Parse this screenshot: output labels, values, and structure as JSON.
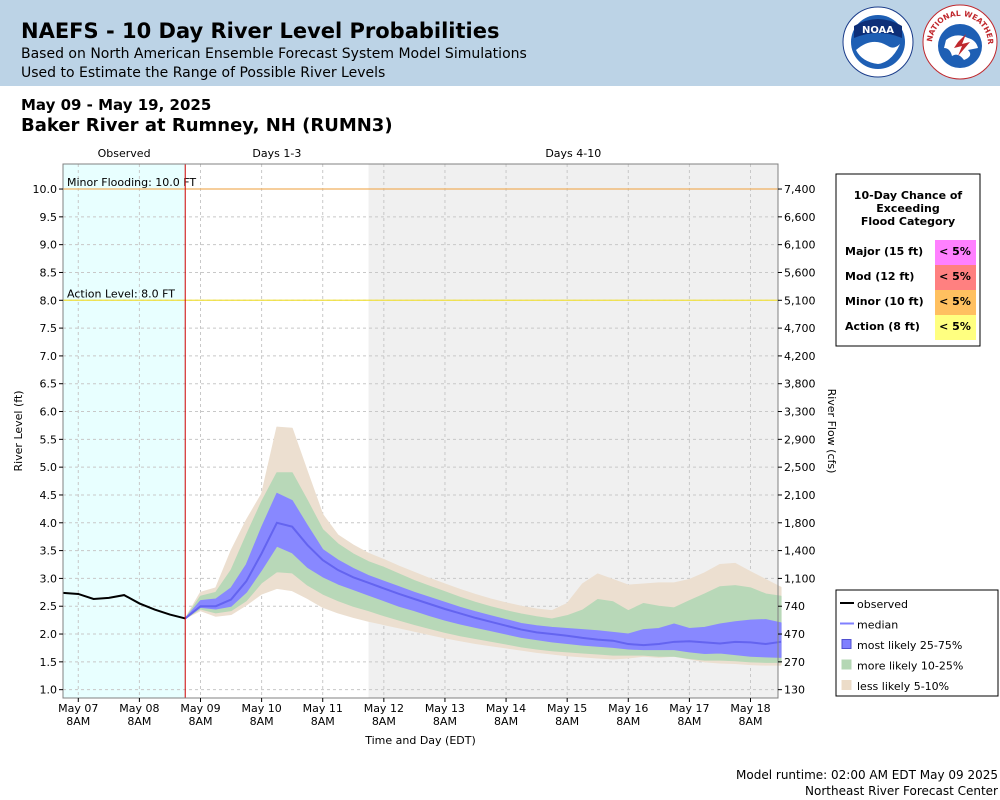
{
  "header": {
    "title": "NAEFS - 10 Day River Level Probabilities",
    "subtitle1": "Based on North American Ensemble Forecast System Model Simulations",
    "subtitle2": "Used to Estimate the Range of Possible River Levels",
    "date_range": "May 09 - May 19, 2025",
    "location": "Baker River at Rumney, NH (RUMN3)"
  },
  "logos": {
    "noara": "NOAA",
    "nws_arc": "NATIONAL WEATHER SERVICE"
  },
  "periods": [
    "Observed",
    "Days 1-3",
    "Days 4-10"
  ],
  "flood_table": {
    "title_lines": [
      "10-Day Chance of",
      "Exceeding",
      "Flood Category"
    ],
    "rows": [
      {
        "label": "Major (15 ft)",
        "value": "< 5%",
        "color": "#ff80ff"
      },
      {
        "label": "Mod (12 ft)",
        "value": "< 5%",
        "color": "#ff8080"
      },
      {
        "label": "Minor (10 ft)",
        "value": "< 5%",
        "color": "#ffc060"
      },
      {
        "label": "Action (8 ft)",
        "value": "< 5%",
        "color": "#ffff80"
      }
    ]
  },
  "footer": {
    "runtime": "Model runtime: 02:00 AM EDT May 09 2025",
    "center": "Northeast River Forecast Center"
  },
  "chart_data": {
    "type": "area",
    "xlabel": "Time and Day (EDT)",
    "ylabel": "River Level (ft)",
    "y2label": "River Flow (cfs)",
    "ylim": [
      0.85,
      10.45
    ],
    "xlim": [
      -0.25,
      11.45
    ],
    "x_ticks": [
      {
        "x": 0,
        "l1": "May 07",
        "l2": "8AM"
      },
      {
        "x": 1,
        "l1": "May 08",
        "l2": "8AM"
      },
      {
        "x": 2,
        "l1": "May 09",
        "l2": "8AM"
      },
      {
        "x": 3,
        "l1": "May 10",
        "l2": "8AM"
      },
      {
        "x": 4,
        "l1": "May 11",
        "l2": "8AM"
      },
      {
        "x": 5,
        "l1": "May 12",
        "l2": "8AM"
      },
      {
        "x": 6,
        "l1": "May 13",
        "l2": "8AM"
      },
      {
        "x": 7,
        "l1": "May 14",
        "l2": "8AM"
      },
      {
        "x": 8,
        "l1": "May 15",
        "l2": "8AM"
      },
      {
        "x": 9,
        "l1": "May 16",
        "l2": "8AM"
      },
      {
        "x": 10,
        "l1": "May 17",
        "l2": "8AM"
      },
      {
        "x": 11,
        "l1": "May 18",
        "l2": "8AM"
      }
    ],
    "y_ticks": [
      1.0,
      1.5,
      2.0,
      2.5,
      3.0,
      3.5,
      4.0,
      4.5,
      5.0,
      5.5,
      6.0,
      6.5,
      7.0,
      7.5,
      8.0,
      8.5,
      9.0,
      9.5,
      10.0
    ],
    "flow_ticks": [
      {
        "stage": 1.0,
        "label": "130"
      },
      {
        "stage": 1.5,
        "label": "270"
      },
      {
        "stage": 2.0,
        "label": "470"
      },
      {
        "stage": 2.5,
        "label": "740"
      },
      {
        "stage": 3.0,
        "label": "1,100"
      },
      {
        "stage": 3.5,
        "label": "1,400"
      },
      {
        "stage": 4.0,
        "label": "1,800"
      },
      {
        "stage": 4.5,
        "label": "2,100"
      },
      {
        "stage": 5.0,
        "label": "2,500"
      },
      {
        "stage": 5.5,
        "label": "2,900"
      },
      {
        "stage": 6.0,
        "label": "3,300"
      },
      {
        "stage": 6.5,
        "label": "3,800"
      },
      {
        "stage": 7.0,
        "label": "4,200"
      },
      {
        "stage": 7.5,
        "label": "4,700"
      },
      {
        "stage": 8.0,
        "label": "5,100"
      },
      {
        "stage": 8.5,
        "label": "5,600"
      },
      {
        "stage": 9.0,
        "label": "6,100"
      },
      {
        "stage": 9.5,
        "label": "6,600"
      },
      {
        "stage": 10.0,
        "label": "7,400"
      }
    ],
    "regions": {
      "observed_end": 1.75,
      "days4_start": 4.75,
      "observed_color": "#e8ffff",
      "days4_color": "#f0f0f0"
    },
    "thresholds": [
      {
        "label": "Minor Flooding: 10.0 FT",
        "value": 10.0,
        "color": "#f0b060"
      },
      {
        "label": "Action Level: 8.0 FT",
        "value": 8.0,
        "color": "#f0e040"
      }
    ],
    "observed": {
      "x": [
        -0.25,
        0.0,
        0.25,
        0.5,
        0.75,
        1.0,
        1.25,
        1.5,
        1.75
      ],
      "y": [
        2.74,
        2.72,
        2.63,
        2.65,
        2.7,
        2.55,
        2.44,
        2.35,
        2.28
      ]
    },
    "forecast_x": [
      1.75,
      2.0,
      2.25,
      2.5,
      2.75,
      3.0,
      3.25,
      3.5,
      3.75,
      4.0,
      4.25,
      4.5,
      4.75,
      5.0,
      5.25,
      5.5,
      5.75,
      6.0,
      6.25,
      6.5,
      6.75,
      7.0,
      7.25,
      7.5,
      7.75,
      8.0,
      8.25,
      8.5,
      8.75,
      9.0,
      9.25,
      9.5,
      9.75,
      10.0,
      10.25,
      10.5,
      10.75,
      11.0,
      11.25,
      11.5
    ],
    "median": [
      2.28,
      2.5,
      2.5,
      2.62,
      2.95,
      3.45,
      4.0,
      3.93,
      3.6,
      3.33,
      3.15,
      3.02,
      2.92,
      2.82,
      2.72,
      2.63,
      2.54,
      2.45,
      2.37,
      2.29,
      2.22,
      2.15,
      2.08,
      2.03,
      2.0,
      1.97,
      1.93,
      1.9,
      1.88,
      1.82,
      1.8,
      1.82,
      1.86,
      1.87,
      1.85,
      1.83,
      1.86,
      1.85,
      1.82,
      1.86
    ],
    "band_25_75": {
      "upper": [
        2.28,
        2.6,
        2.63,
        2.83,
        3.25,
        3.92,
        4.53,
        4.4,
        3.95,
        3.52,
        3.33,
        3.18,
        3.05,
        2.95,
        2.85,
        2.75,
        2.66,
        2.57,
        2.48,
        2.4,
        2.33,
        2.26,
        2.19,
        2.15,
        2.12,
        2.1,
        2.08,
        2.06,
        2.03,
        2.0,
        2.08,
        2.1,
        2.18,
        2.1,
        2.12,
        2.18,
        2.22,
        2.25,
        2.26,
        2.2
      ],
      "lower": [
        2.28,
        2.48,
        2.45,
        2.5,
        2.75,
        3.15,
        3.58,
        3.46,
        3.2,
        3.03,
        2.9,
        2.8,
        2.7,
        2.6,
        2.5,
        2.42,
        2.33,
        2.25,
        2.18,
        2.12,
        2.06,
        2.0,
        1.94,
        1.9,
        1.86,
        1.83,
        1.8,
        1.78,
        1.76,
        1.73,
        1.72,
        1.72,
        1.72,
        1.68,
        1.65,
        1.66,
        1.63,
        1.6,
        1.59,
        1.58
      ]
    },
    "band_10_25": {
      "upper": [
        2.28,
        2.68,
        2.75,
        3.15,
        3.78,
        4.38,
        4.9,
        4.9,
        4.4,
        3.88,
        3.62,
        3.44,
        3.3,
        3.2,
        3.08,
        2.96,
        2.86,
        2.76,
        2.66,
        2.57,
        2.49,
        2.42,
        2.36,
        2.31,
        2.27,
        2.33,
        2.43,
        2.62,
        2.58,
        2.42,
        2.55,
        2.5,
        2.47,
        2.6,
        2.72,
        2.85,
        2.87,
        2.83,
        2.72,
        2.68
      ],
      "lower": [
        2.28,
        2.45,
        2.38,
        2.42,
        2.6,
        2.92,
        3.12,
        3.1,
        2.88,
        2.72,
        2.6,
        2.5,
        2.42,
        2.33,
        2.25,
        2.17,
        2.1,
        2.03,
        1.97,
        1.92,
        1.87,
        1.82,
        1.77,
        1.73,
        1.7,
        1.68,
        1.66,
        1.64,
        1.62,
        1.62,
        1.62,
        1.6,
        1.6,
        1.56,
        1.53,
        1.53,
        1.52,
        1.5,
        1.49,
        1.49
      ]
    },
    "band_5_10": {
      "upper": [
        2.28,
        2.75,
        2.83,
        3.5,
        4.05,
        4.52,
        5.72,
        5.7,
        4.92,
        4.15,
        3.78,
        3.6,
        3.45,
        3.34,
        3.22,
        3.11,
        3.0,
        2.9,
        2.8,
        2.71,
        2.63,
        2.56,
        2.5,
        2.45,
        2.42,
        2.55,
        2.9,
        3.08,
        2.98,
        2.88,
        2.9,
        2.92,
        2.92,
        2.98,
        3.1,
        3.25,
        3.27,
        3.12,
        2.98,
        2.84
      ],
      "lower": [
        2.28,
        2.42,
        2.32,
        2.35,
        2.52,
        2.72,
        2.82,
        2.78,
        2.64,
        2.48,
        2.38,
        2.3,
        2.23,
        2.17,
        2.11,
        2.05,
        1.99,
        1.93,
        1.88,
        1.83,
        1.79,
        1.75,
        1.71,
        1.67,
        1.64,
        1.61,
        1.59,
        1.57,
        1.55,
        1.57,
        1.6,
        1.58,
        1.6,
        1.55,
        1.5,
        1.48,
        1.47,
        1.45,
        1.44,
        1.44
      ]
    },
    "legend": [
      {
        "key": "observed",
        "label": "observed",
        "color": "#000000"
      },
      {
        "key": "median",
        "label": "median",
        "color": "#8080ff"
      },
      {
        "key": "b25",
        "label": "most likely 25-75%",
        "color": "#8080ff"
      },
      {
        "key": "b10",
        "label": "more likely 10-25%",
        "color": "#b4d7b4"
      },
      {
        "key": "b5",
        "label": "less likely 5-10%",
        "color": "#ecdcc8"
      }
    ],
    "colors": {
      "band_25_75": "#8888ff",
      "band_10_25": "#b8d8b8",
      "band_5_10": "#ecdfd0",
      "median": "#6464f0",
      "observed": "#000000",
      "issuance": "#cc0000"
    }
  }
}
